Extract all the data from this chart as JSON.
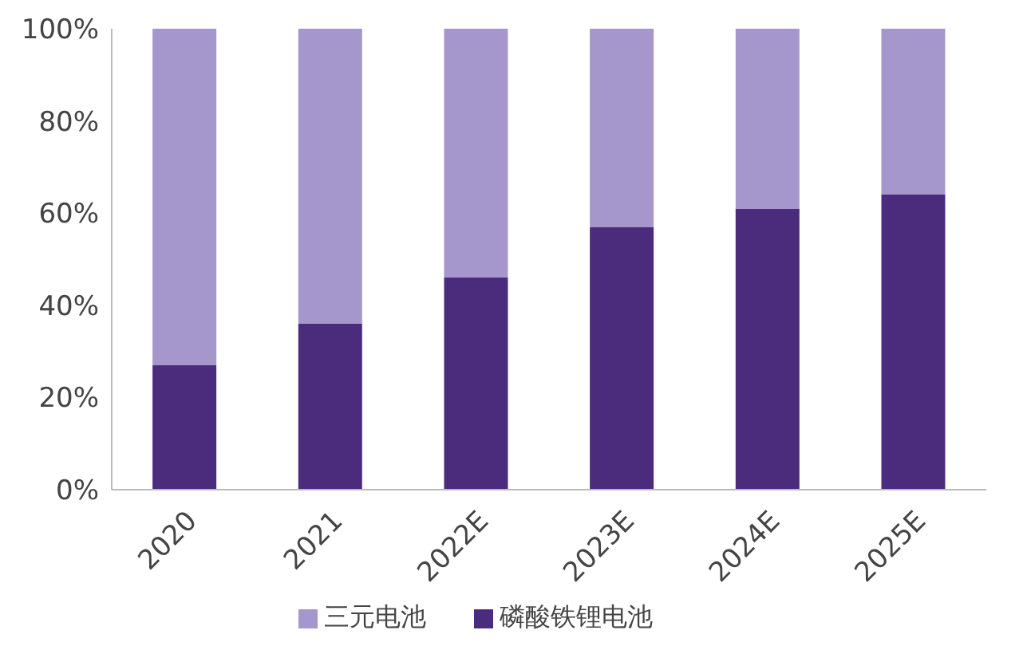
{
  "chart_data": {
    "type": "bar",
    "stacked": true,
    "categories": [
      "2020",
      "2021",
      "2022E",
      "2023E",
      "2024E",
      "2025E"
    ],
    "series": [
      {
        "name": "磷酸铁锂电池",
        "color": "#4b2c7c",
        "values": [
          27,
          36,
          46,
          57,
          61,
          64
        ]
      },
      {
        "name": "三元电池",
        "color": "#a597cc",
        "values": [
          73,
          64,
          54,
          43,
          39,
          36
        ]
      }
    ],
    "ylim": [
      0,
      100
    ],
    "yticks": [
      {
        "value": 0,
        "label": "0%"
      },
      {
        "value": 20,
        "label": "20%"
      },
      {
        "value": 40,
        "label": "40%"
      },
      {
        "value": 60,
        "label": "60%"
      },
      {
        "value": 80,
        "label": "80%"
      },
      {
        "value": 100,
        "label": "100%"
      }
    ],
    "grid": false,
    "legend": "bottom"
  }
}
